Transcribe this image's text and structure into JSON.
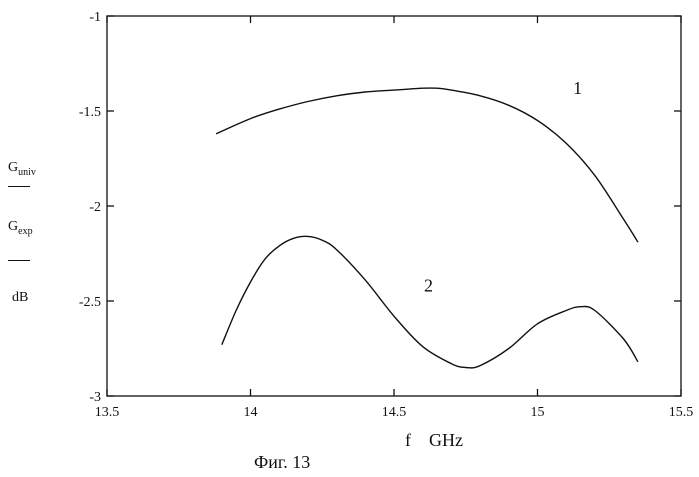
{
  "chart_data": {
    "type": "line",
    "title": "",
    "xlabel": "f    GHz",
    "ylabel": {
      "numerator": "G",
      "numerator_sub": "univ",
      "denominator": "G",
      "denominator_sub": "exp",
      "unit": "dB"
    },
    "xlim": [
      13.5,
      15.5
    ],
    "ylim": [
      -3,
      -1
    ],
    "x_ticks": [
      13.5,
      14,
      14.5,
      15,
      15.5
    ],
    "x_tick_labels": [
      "13.5",
      "14",
      "14.5",
      "15",
      "15.5"
    ],
    "y_ticks": [
      -3,
      -2.5,
      -2,
      -1.5,
      -1
    ],
    "y_tick_labels": [
      "-3",
      "-2.5",
      "-2",
      "-1.5",
      "-1"
    ],
    "grid": false,
    "series": [
      {
        "name": "1",
        "x": [
          13.88,
          14.0,
          14.1,
          14.2,
          14.3,
          14.4,
          14.5,
          14.6,
          14.65,
          14.7,
          14.8,
          14.9,
          15.0,
          15.1,
          15.2,
          15.3,
          15.35
        ],
        "y": [
          -1.62,
          -1.54,
          -1.49,
          -1.45,
          -1.42,
          -1.4,
          -1.39,
          -1.38,
          -1.38,
          -1.39,
          -1.42,
          -1.47,
          -1.55,
          -1.67,
          -1.84,
          -2.07,
          -2.19
        ]
      },
      {
        "name": "2",
        "x": [
          13.9,
          13.95,
          14.0,
          14.05,
          14.1,
          14.15,
          14.2,
          14.25,
          14.3,
          14.4,
          14.5,
          14.6,
          14.7,
          14.75,
          14.8,
          14.9,
          15.0,
          15.1,
          15.15,
          15.2,
          15.3,
          15.35
        ],
        "y": [
          -2.73,
          -2.55,
          -2.4,
          -2.28,
          -2.21,
          -2.17,
          -2.16,
          -2.18,
          -2.23,
          -2.39,
          -2.58,
          -2.74,
          -2.83,
          -2.85,
          -2.84,
          -2.75,
          -2.62,
          -2.55,
          -2.53,
          -2.55,
          -2.7,
          -2.82
        ]
      }
    ],
    "curve_labels": [
      {
        "text": "1",
        "x": 15.14,
        "y": -1.41
      },
      {
        "text": "2",
        "x": 14.62,
        "y": -2.45
      }
    ]
  },
  "caption": "Фиг. 13"
}
